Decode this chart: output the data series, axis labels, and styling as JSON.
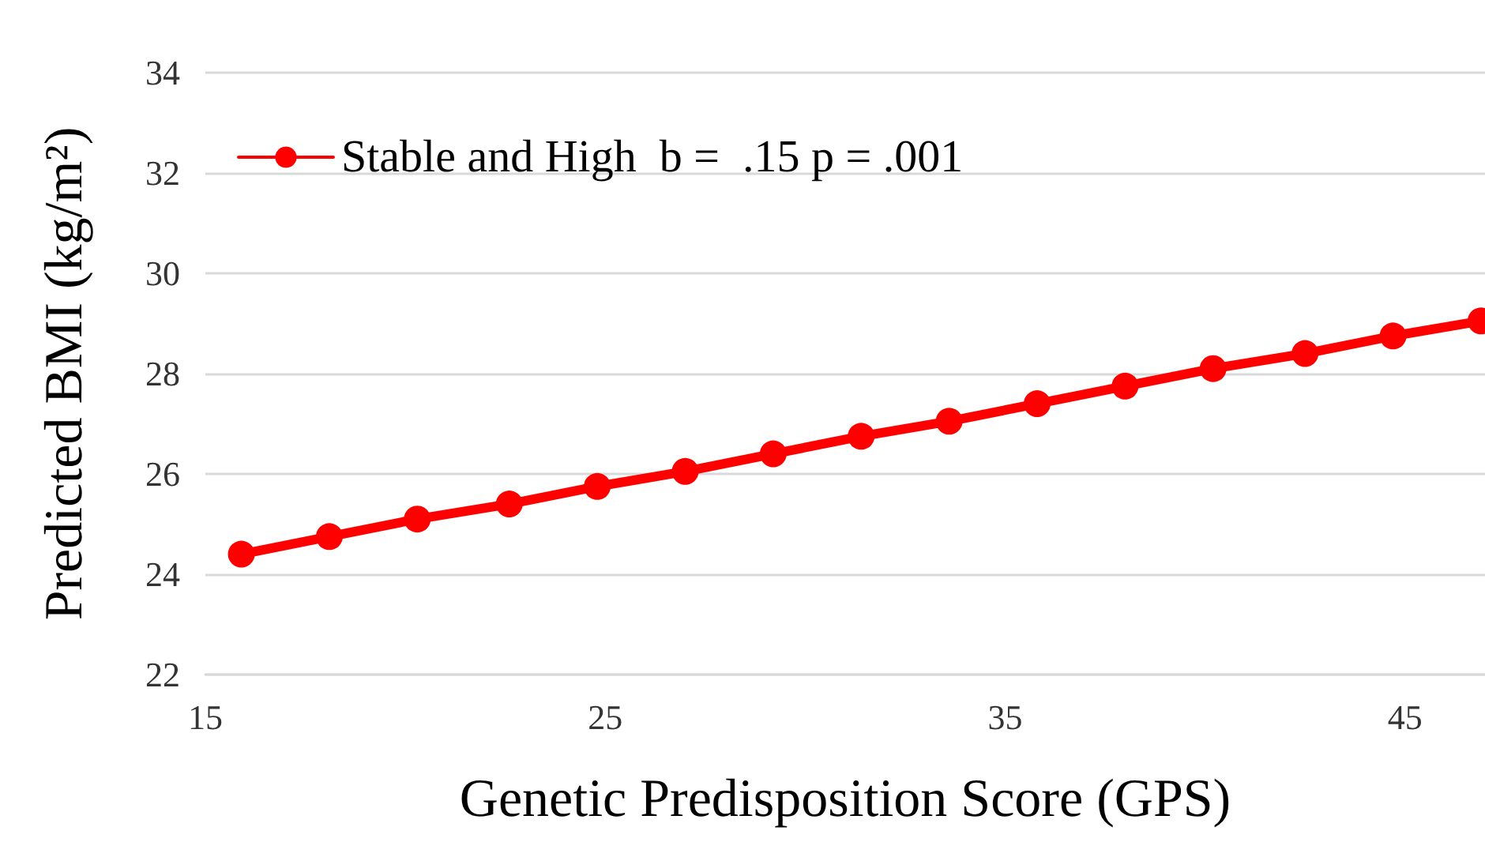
{
  "chart_data": {
    "type": "line",
    "xlabel": "Genetic Predisposition Score (GPS)",
    "ylabel": "Predicted BMI (kg/m²)",
    "x": [
      15.9,
      18.1,
      20.3,
      22.6,
      24.8,
      27,
      29.2,
      31.4,
      33.6,
      35.8,
      38,
      40.2,
      42.5,
      44.7,
      46.9
    ],
    "series": [
      {
        "name": "Stable and High  b =  .15 p = .001",
        "color": "#ff0000",
        "values": [
          24.4,
          24.75,
          25.1,
          25.4,
          25.75,
          26.05,
          26.4,
          26.75,
          27.05,
          27.4,
          27.75,
          28.1,
          28.4,
          28.75,
          29.05
        ]
      }
    ],
    "xlim": [
      15,
      47
    ],
    "xticks": [
      15,
      25,
      35,
      45
    ],
    "ylim": [
      22,
      34
    ],
    "yticks": [
      22,
      24,
      26,
      28,
      30,
      32,
      34
    ],
    "grid": "y",
    "legend": "top left",
    "marker": "circle",
    "line_style": "solid"
  }
}
